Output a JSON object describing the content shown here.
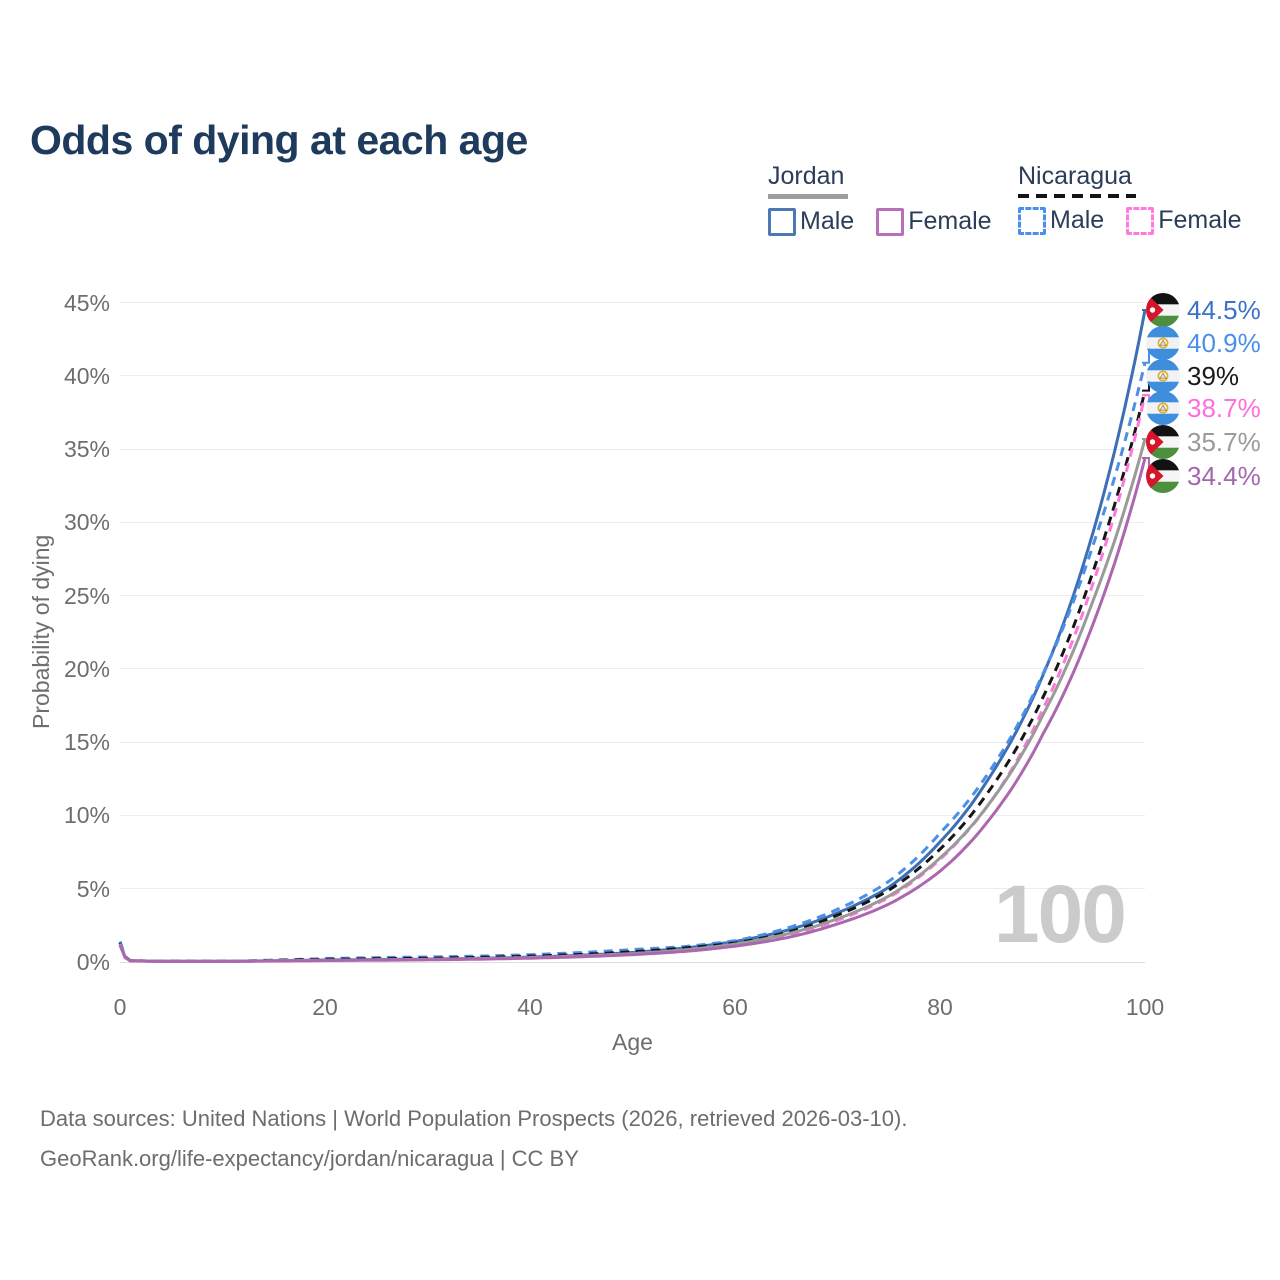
{
  "title": "Odds of dying at each age",
  "legend": {
    "groups": [
      {
        "country": "Jordan",
        "underline_color": "#9e9e9e",
        "underline_style": "solid",
        "items": [
          {
            "label": "Male",
            "color": "#4c79b5",
            "dash": false
          },
          {
            "label": "Female",
            "color": "#b871b8",
            "dash": false
          }
        ]
      },
      {
        "country": "Nicaragua",
        "underline_color": "#141414",
        "underline_style": "dashed",
        "items": [
          {
            "label": "Male",
            "color": "#4a8fe8",
            "dash": true
          },
          {
            "label": "Female",
            "color": "#ff7adf",
            "dash": true
          }
        ]
      }
    ]
  },
  "axes": {
    "y_label": "Probability of dying",
    "x_label": "Age",
    "y_ticks": [
      "0%",
      "5%",
      "10%",
      "15%",
      "20%",
      "25%",
      "30%",
      "35%",
      "40%",
      "45%"
    ],
    "x_ticks": [
      "0",
      "20",
      "40",
      "60",
      "80",
      "100"
    ]
  },
  "watermark": "100",
  "footer": {
    "line1": "Data sources: United Nations | World Population Prospects (2026, retrieved 2026-03-10).",
    "line2": "GeoRank.org/life-expectancy/jordan/nicaragua | CC BY"
  },
  "chart_data": {
    "type": "line",
    "title": "Odds of dying at each age",
    "xlabel": "Age",
    "ylabel": "Probability of dying",
    "xlim": [
      0,
      100
    ],
    "ylim": [
      0,
      45
    ],
    "y_unit": "%",
    "grid": "horizontal",
    "legend_position": "top-right",
    "x": [
      0,
      1,
      5,
      10,
      15,
      20,
      25,
      30,
      35,
      40,
      45,
      50,
      55,
      60,
      65,
      70,
      75,
      80,
      85,
      90,
      95,
      100
    ],
    "series": [
      {
        "name": "Jordan Male",
        "country": "Jordan",
        "sex": "Male",
        "color": "#3c6fb5",
        "label_color": "#3b72c6",
        "dash": false,
        "flag": "jordan",
        "end_label": "44.5%",
        "end_value": 44.5,
        "values": [
          1.3,
          0.09,
          0.045,
          0.045,
          0.09,
          0.14,
          0.17,
          0.2,
          0.25,
          0.33,
          0.46,
          0.65,
          0.95,
          1.4,
          2.15,
          3.35,
          5.1,
          8.2,
          12.8,
          19.5,
          29.5,
          44.5
        ]
      },
      {
        "name": "Nicaragua Male",
        "country": "Nicaragua",
        "sex": "Male",
        "color": "#4a8fe8",
        "label_color": "#4a8fe8",
        "dash": true,
        "flag": "nicaragua",
        "end_label": "40.9%",
        "end_value": 40.9,
        "values": [
          1.4,
          0.1,
          0.05,
          0.05,
          0.13,
          0.24,
          0.3,
          0.34,
          0.4,
          0.5,
          0.65,
          0.85,
          1.05,
          1.45,
          2.3,
          3.6,
          5.5,
          8.8,
          13.2,
          19.6,
          28.6,
          40.9
        ]
      },
      {
        "name": "Nicaragua",
        "country": "Nicaragua",
        "sex": "Both",
        "color": "#161616",
        "label_color": "#1a1a1a",
        "dash": true,
        "flag": "nicaragua",
        "end_label": "39%",
        "end_value": 39,
        "values": [
          1.3,
          0.09,
          0.045,
          0.045,
          0.11,
          0.18,
          0.22,
          0.26,
          0.31,
          0.4,
          0.52,
          0.7,
          0.95,
          1.3,
          2.0,
          3.2,
          4.9,
          7.7,
          11.9,
          18.0,
          26.8,
          39.0
        ]
      },
      {
        "name": "Nicaragua Female",
        "country": "Nicaragua",
        "sex": "Female",
        "color": "#ff77dd",
        "label_color": "#ff6edb",
        "dash": true,
        "flag": "nicaragua",
        "end_label": "38.7%",
        "end_value": 38.7,
        "values": [
          1.2,
          0.08,
          0.04,
          0.04,
          0.09,
          0.12,
          0.15,
          0.18,
          0.23,
          0.31,
          0.42,
          0.57,
          0.82,
          1.18,
          1.8,
          2.85,
          4.4,
          7.0,
          11.0,
          17.2,
          26.0,
          38.7
        ]
      },
      {
        "name": "Jordan",
        "country": "Jordan",
        "sex": "Both",
        "color": "#9a9a9a",
        "label_color": "#9a9a9a",
        "dash": false,
        "flag": "jordan",
        "end_label": "35.7%",
        "end_value": 35.7,
        "values": [
          1.25,
          0.085,
          0.042,
          0.042,
          0.08,
          0.12,
          0.14,
          0.17,
          0.22,
          0.29,
          0.4,
          0.56,
          0.82,
          1.22,
          1.9,
          2.95,
          4.5,
          7.1,
          11.0,
          16.8,
          24.8,
          35.7
        ]
      },
      {
        "name": "Jordan Female",
        "country": "Jordan",
        "sex": "Female",
        "color": "#ab68af",
        "label_color": "#a367ad",
        "dash": false,
        "flag": "jordan",
        "end_label": "34.4%",
        "end_value": 34.4,
        "values": [
          1.15,
          0.08,
          0.04,
          0.04,
          0.07,
          0.1,
          0.12,
          0.15,
          0.19,
          0.26,
          0.36,
          0.5,
          0.72,
          1.08,
          1.65,
          2.6,
          3.95,
          6.2,
          9.9,
          15.5,
          23.2,
          34.4
        ]
      }
    ]
  }
}
